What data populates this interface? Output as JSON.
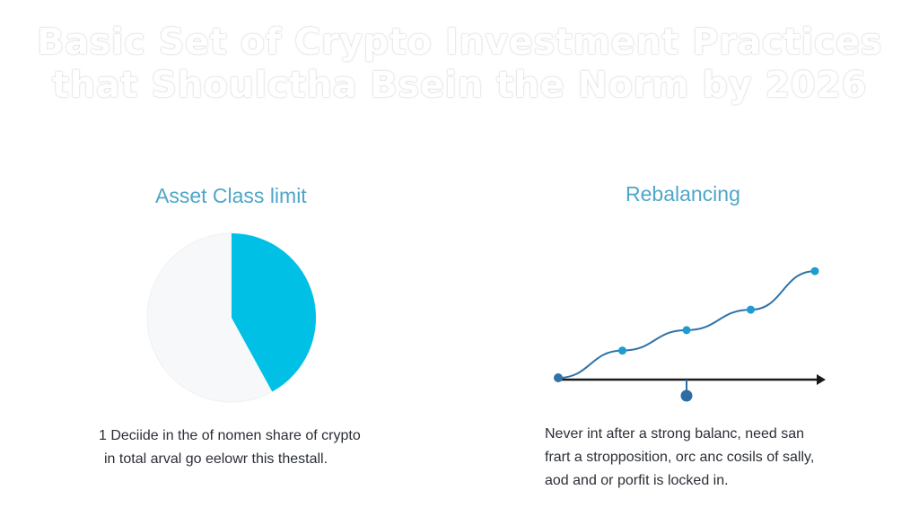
{
  "title": {
    "line1": "Basic Set of Crypto Investment Practices",
    "line2": "that Shoulctha Bsein the Norm by 2026"
  },
  "left_panel": {
    "heading": "Asset Class limit",
    "description": [
      "1 Deciide in the of nomen share of crypto",
      "in total arval go eelowr this thestall."
    ]
  },
  "right_panel": {
    "heading": "Rebalancing",
    "description": [
      "Never int after a strong balanc, need san",
      "frart a stropposition, orc anc cosils of sally,",
      "aod and or porfit is locked in."
    ]
  },
  "colors": {
    "pie_fill": "#00c0e6",
    "pie_remainder": "#f7f8f9",
    "curve": "#2f73a8",
    "curve_points": "#1e9bd0",
    "axis": "#1a1a1a",
    "marker": "#2c6ea3"
  },
  "chart_data": [
    {
      "type": "pie",
      "values": [
        0.42,
        0.58
      ],
      "note": "single highlighted share of a full circle"
    },
    {
      "type": "line",
      "x": [
        0,
        1,
        2,
        3,
        4
      ],
      "values": [
        0,
        1.2,
        2.1,
        3.0,
        4.7
      ],
      "marker_x": 2
    }
  ]
}
